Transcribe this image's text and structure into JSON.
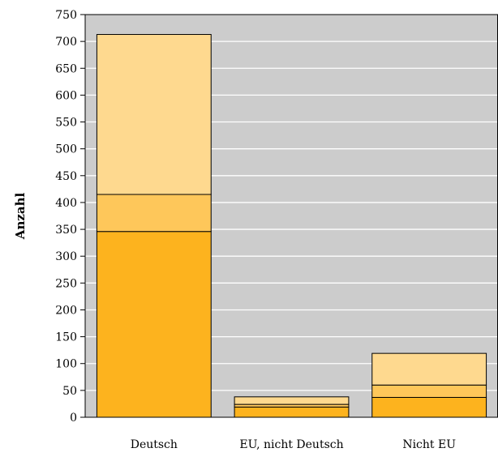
{
  "chart_data": {
    "type": "bar",
    "stacked": true,
    "title": "",
    "xlabel": "",
    "ylabel": "Anzahl",
    "categories": [
      "Deutsch",
      "EU, nicht Deutsch",
      "Nicht EU"
    ],
    "series": [
      {
        "values": [
          346,
          19,
          37
        ],
        "color": "#FDB31E"
      },
      {
        "values": [
          69,
          5,
          23
        ],
        "color": "#FEC75A"
      },
      {
        "values": [
          298,
          14,
          59
        ],
        "color": "#FED98F"
      }
    ],
    "ylim": [
      0,
      750
    ],
    "yticks": [
      0,
      50,
      100,
      150,
      200,
      250,
      300,
      350,
      400,
      450,
      500,
      550,
      600,
      650,
      700,
      750
    ],
    "grid": true,
    "plot_background": "#CCCCCC",
    "gridline_color": "#FFFFFF",
    "bar_edge_color": "#000000"
  }
}
